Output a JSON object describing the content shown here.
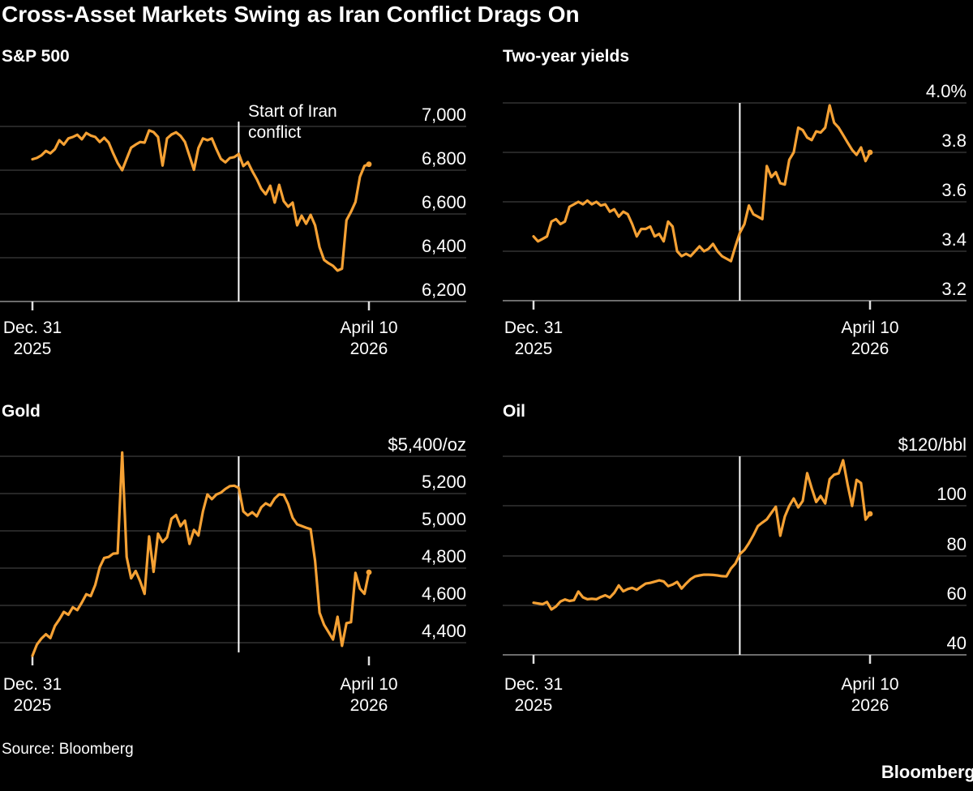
{
  "title": "Cross-Asset Markets Swing as Iran Conflict Drags On",
  "source": "Source: Bloomberg",
  "brand": "Bloomberg",
  "colors": {
    "background": "#000000",
    "line": "#F5A134",
    "grid": "#4d4d4d",
    "axis": "#8f8f8f",
    "tick": "#e0e0e0",
    "event_line": "#ffffff",
    "text": "#ffffff"
  },
  "x_axis": {
    "start_line1": "Dec. 31",
    "start_line2": "2025",
    "end_line1": "April 10",
    "end_line2": "2026"
  },
  "chart_data": [
    {
      "id": "sp500",
      "type": "line",
      "title": "S&P 500",
      "y_tick_labels": [
        "7,000",
        "6,800",
        "6,600",
        "6,400",
        "6,200"
      ],
      "y_tick_values": [
        7000,
        6800,
        6600,
        6400,
        6200
      ],
      "x_range": [
        "Dec. 31, 2025",
        "April 10, 2026"
      ],
      "event": {
        "x_fraction": 0.613,
        "label_line1": "Start of Iran",
        "label_line2": "conflict"
      },
      "values": [
        6850,
        6856,
        6868,
        6888,
        6877,
        6896,
        6937,
        6917,
        6945,
        6952,
        6962,
        6941,
        6970,
        6958,
        6952,
        6929,
        6948,
        6926,
        6877,
        6833,
        6800,
        6852,
        6903,
        6917,
        6929,
        6926,
        6982,
        6974,
        6952,
        6821,
        6945,
        6963,
        6973,
        6957,
        6929,
        6865,
        6802,
        6901,
        6945,
        6937,
        6945,
        6896,
        6852,
        6836,
        6856,
        6860,
        6874,
        6819,
        6837,
        6796,
        6759,
        6715,
        6690,
        6729,
        6652,
        6733,
        6659,
        6633,
        6652,
        6548,
        6592,
        6555,
        6596,
        6548,
        6448,
        6390,
        6375,
        6363,
        6341,
        6350,
        6571,
        6610,
        6655,
        6770,
        6820,
        6827
      ]
    },
    {
      "id": "two_year_yields",
      "type": "line",
      "title": "Two-year yields",
      "y_tick_labels": [
        "4.0%",
        "3.8",
        "3.6",
        "3.4",
        "3.2"
      ],
      "y_tick_values": [
        4.0,
        3.8,
        3.6,
        3.4,
        3.2
      ],
      "x_range": [
        "Dec. 31, 2025",
        "April 10, 2026"
      ],
      "event": {
        "x_fraction": 0.613
      },
      "values": [
        3.46,
        3.44,
        3.45,
        3.46,
        3.52,
        3.53,
        3.51,
        3.52,
        3.58,
        3.59,
        3.6,
        3.59,
        3.605,
        3.59,
        3.6,
        3.585,
        3.59,
        3.56,
        3.57,
        3.54,
        3.56,
        3.55,
        3.51,
        3.46,
        3.49,
        3.49,
        3.5,
        3.46,
        3.47,
        3.44,
        3.52,
        3.5,
        3.4,
        3.38,
        3.39,
        3.38,
        3.4,
        3.42,
        3.4,
        3.41,
        3.43,
        3.4,
        3.38,
        3.37,
        3.36,
        3.42,
        3.475,
        3.51,
        3.585,
        3.55,
        3.54,
        3.53,
        3.745,
        3.7,
        3.72,
        3.675,
        3.67,
        3.77,
        3.8,
        3.9,
        3.89,
        3.86,
        3.85,
        3.885,
        3.88,
        3.9,
        3.99,
        3.92,
        3.9,
        3.87,
        3.84,
        3.81,
        3.79,
        3.82,
        3.765,
        3.8
      ]
    },
    {
      "id": "gold",
      "type": "line",
      "title": "Gold",
      "y_tick_labels": [
        "$5,400/oz",
        "5,200",
        "5,000",
        "4,800",
        "4,600",
        "4,400"
      ],
      "y_tick_values": [
        5400,
        5200,
        5000,
        4800,
        4600,
        4400
      ],
      "x_range": [
        "Dec. 31, 2025",
        "April 10, 2026"
      ],
      "event": {
        "x_fraction": 0.613
      },
      "values": [
        4330,
        4390,
        4422,
        4445,
        4425,
        4490,
        4525,
        4565,
        4550,
        4590,
        4575,
        4615,
        4660,
        4650,
        4710,
        4805,
        4855,
        4860,
        4878,
        4880,
        5420,
        4860,
        4745,
        4785,
        4730,
        4662,
        4970,
        4780,
        4985,
        4940,
        4965,
        5065,
        5085,
        5025,
        5055,
        4930,
        5005,
        4975,
        5105,
        5195,
        5170,
        5195,
        5205,
        5225,
        5240,
        5242,
        5230,
        5104,
        5083,
        5100,
        5078,
        5126,
        5148,
        5135,
        5174,
        5196,
        5193,
        5143,
        5070,
        5035,
        5026,
        5017,
        5009,
        4839,
        4561,
        4496,
        4457,
        4417,
        4539,
        4383,
        4505,
        4510,
        4775,
        4690,
        4662,
        4778
      ]
    },
    {
      "id": "oil",
      "type": "line",
      "title": "Oil",
      "y_tick_labels": [
        "$120/bbl",
        "100",
        "80",
        "60",
        "40"
      ],
      "y_tick_values": [
        120,
        100,
        80,
        60,
        40
      ],
      "x_range": [
        "Dec. 31, 2025",
        "April 10, 2026"
      ],
      "event": {
        "x_fraction": 0.613
      },
      "values": [
        61,
        60.7,
        60.4,
        61.3,
        58.3,
        59.5,
        61.5,
        62.3,
        61.7,
        62,
        65.5,
        63.2,
        62.4,
        62.6,
        62.4,
        63.3,
        64,
        63.1,
        65,
        68,
        65.6,
        66.5,
        67,
        66.2,
        67.5,
        68.7,
        69,
        69.5,
        70,
        69.6,
        67.7,
        68.3,
        69.4,
        66.7,
        68.7,
        70.5,
        71.6,
        72,
        72.3,
        72.3,
        72.2,
        72,
        71.7,
        71.6,
        74.8,
        76.8,
        80.6,
        82.3,
        85,
        88.2,
        91.9,
        93.3,
        94.6,
        97.2,
        99.7,
        88,
        95.7,
        100,
        103,
        99.4,
        102,
        113.2,
        107.1,
        101.6,
        104,
        101,
        110.8,
        112.6,
        113.1,
        118.4,
        108.7,
        100,
        110.5,
        109.2,
        94.5,
        96.8
      ]
    }
  ]
}
